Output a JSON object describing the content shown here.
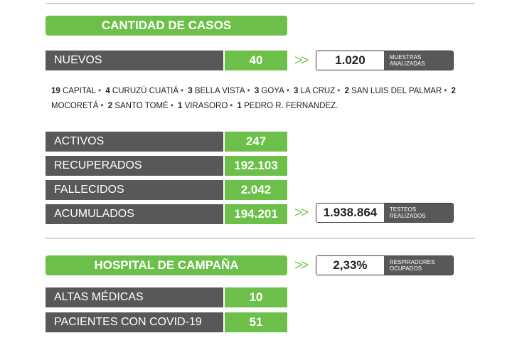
{
  "cantidad_header": "CANTIDAD DE CASOS",
  "nuevos": {
    "label": "NUEVOS",
    "value": "40"
  },
  "muestras": {
    "value": "1.020",
    "caption_line1": "MUESTRAS",
    "caption_line2": "ANALIZADAS"
  },
  "cities": [
    {
      "count": "19",
      "name": "CAPITAL"
    },
    {
      "count": "4",
      "name": "CURUZÚ CUATIÁ"
    },
    {
      "count": "3",
      "name": "BELLA VISTA"
    },
    {
      "count": "3",
      "name": "GOYA"
    },
    {
      "count": "3",
      "name": "LA CRUZ"
    },
    {
      "count": "2",
      "name": "SAN LUIS DEL PALMAR"
    },
    {
      "count": "2",
      "name": "MOCORETÁ"
    },
    {
      "count": "2",
      "name": "SANTO TOMÉ"
    },
    {
      "count": "1",
      "name": "VIRASORO"
    },
    {
      "count": "1",
      "name": "PEDRO R. FERNANDEZ."
    }
  ],
  "stats": [
    {
      "label": "ACTIVOS",
      "value": "247"
    },
    {
      "label": "RECUPERADOS",
      "value": "192.103"
    },
    {
      "label": "FALLECIDOS",
      "value": "2.042"
    },
    {
      "label": "ACUMULADOS",
      "value": "194.201"
    }
  ],
  "testeos": {
    "value": "1.938.864",
    "caption_line1": "TESTEOS",
    "caption_line2": "REALIZADOS"
  },
  "hospital_header": "HOSPITAL DE CAMPAÑA",
  "respiradores": {
    "value": "2,33%",
    "caption_line1": "RESPIRADORES",
    "caption_line2": "OCUPADOS"
  },
  "hospital_stats": [
    {
      "label": "ALTAS MÉDICAS",
      "value": "10"
    },
    {
      "label": "PACIENTES CON COVID-19",
      "value": "51"
    }
  ],
  "colors": {
    "green": "#6cc04a",
    "gray": "#585858",
    "rule": "#d5d5d5"
  }
}
